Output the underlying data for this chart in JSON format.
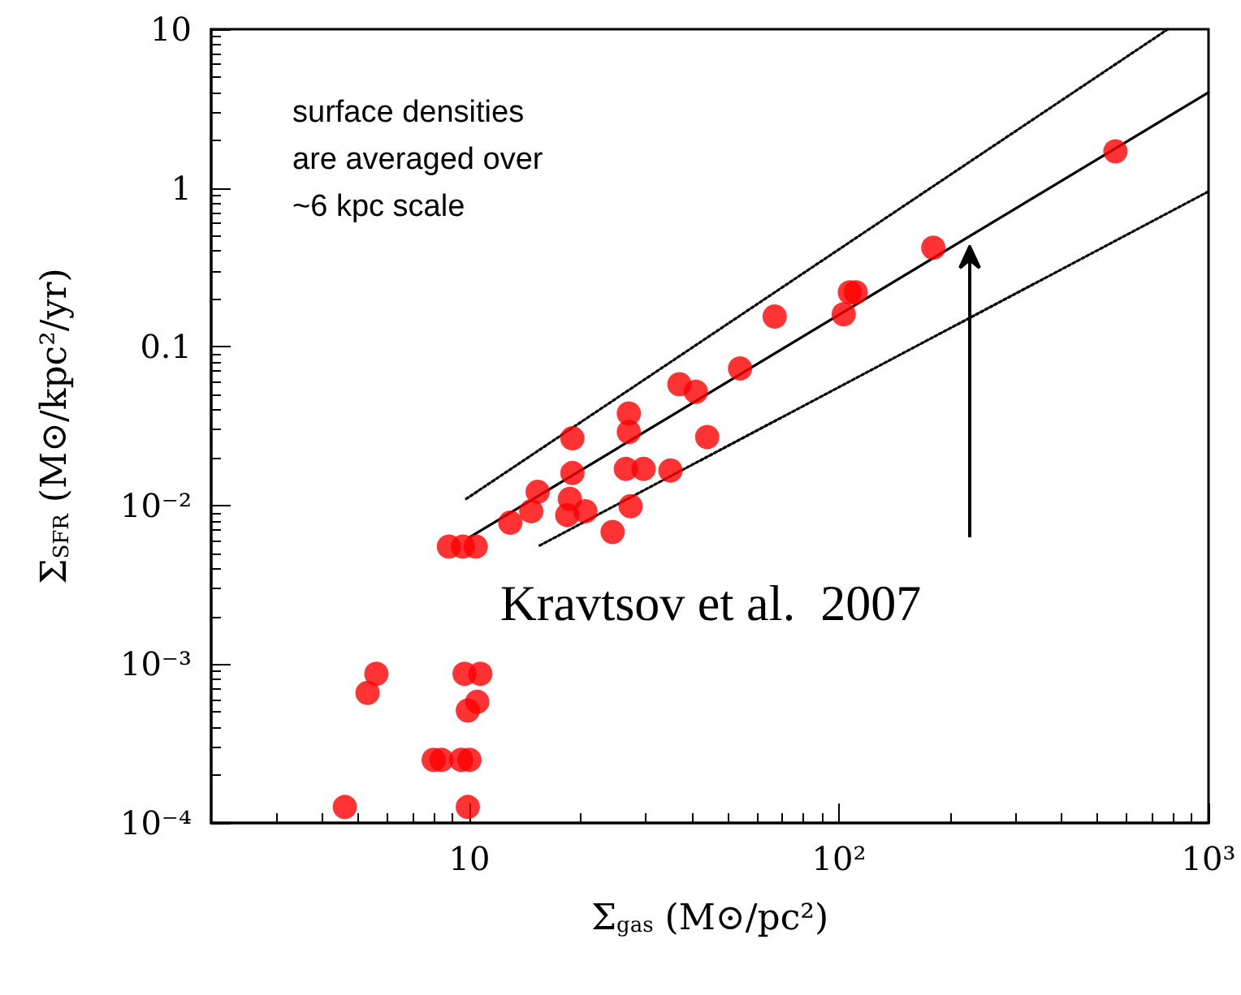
{
  "chart_data": {
    "type": "scatter",
    "xlabel": "Σ$_{gas}$ (M⊙/pc²)",
    "ylabel": "Σ$_{SFR}$ (M⊙/kpc²/yr)",
    "log": "xy",
    "xlim": [
      2,
      1000
    ],
    "ylim": [
      0.0001,
      10
    ],
    "xticks": [
      10,
      {
        "value": 100,
        "label": "10²"
      },
      {
        "value": 1000,
        "label": "10³"
      }
    ],
    "yticks": [
      {
        "value": 0.0001,
        "label": "10⁻⁴"
      },
      {
        "value": 0.001,
        "label": "10⁻³"
      },
      {
        "value": 0.01,
        "label": "10⁻²"
      },
      0.1,
      1,
      10
    ],
    "grid": false,
    "marker": "circle",
    "annotations": [
      "surface densities\nare averaged over\n~6 kpc scale",
      "Kravtsov et al.  2007"
    ],
    "series": [
      {
        "type": "line",
        "color": "#000000",
        "line_style": "solid",
        "marker": "none",
        "x": [
          10,
          1000
        ],
        "values": [
          0.0063,
          4.0
        ]
      },
      {
        "type": "line",
        "color": "#000000",
        "line_style": "dotted",
        "marker": "none",
        "x": [
          9.8,
          776
        ],
        "values": [
          0.011,
          10
        ]
      },
      {
        "type": "line",
        "color": "#000000",
        "line_style": "dotted",
        "marker": "none",
        "x": [
          15.5,
          1000
        ],
        "values": [
          0.0056,
          0.95
        ]
      },
      {
        "color": "#ff0000",
        "x": [
          560,
          180,
          107,
          111,
          103,
          67,
          54,
          37,
          41,
          44,
          27,
          27,
          19,
          19,
          26.5,
          29.6,
          35,
          15.3,
          14.7,
          18.7,
          18.4,
          20.6,
          27.3,
          12.9,
          24.4,
          8.8,
          9.6,
          10.4,
          5.6,
          5.3,
          9.7,
          10.7,
          10.5,
          9.9,
          8.0,
          8.4,
          9.5,
          10.0,
          4.6,
          9.9
        ],
        "values": [
          1.7,
          0.42,
          0.22,
          0.22,
          0.16,
          0.155,
          0.073,
          0.058,
          0.052,
          0.027,
          0.038,
          0.029,
          0.0265,
          0.016,
          0.017,
          0.017,
          0.0166,
          0.0122,
          0.0092,
          0.011,
          0.0087,
          0.0092,
          0.0099,
          0.0078,
          0.0068,
          0.0055,
          0.0055,
          0.0055,
          0.00087,
          0.00066,
          0.00087,
          0.00087,
          0.00058,
          0.00051,
          0.00025,
          0.00025,
          0.00025,
          0.00025,
          0.000126,
          0.000126
        ]
      }
    ]
  }
}
